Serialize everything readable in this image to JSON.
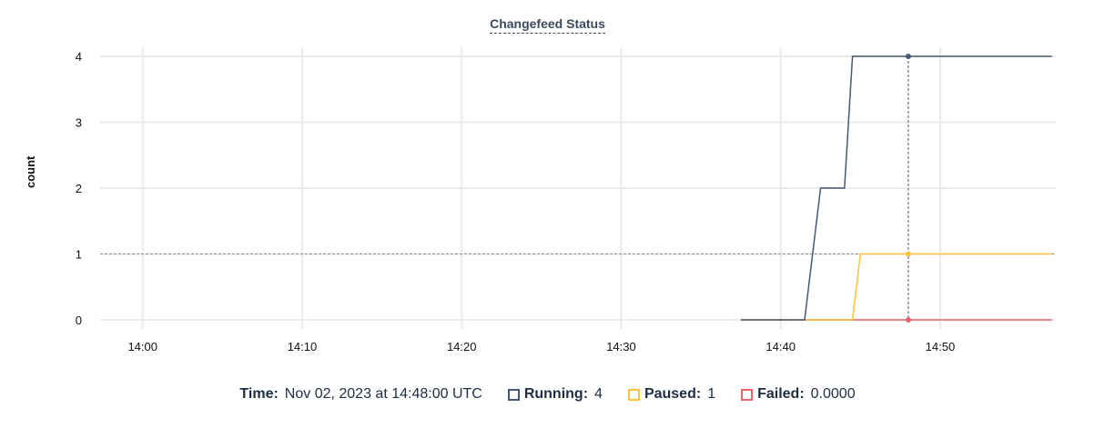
{
  "chart_data": {
    "type": "line",
    "title": "Changefeed Status",
    "xlabel": "",
    "ylabel": "count",
    "x_ticks": [
      "14:00",
      "14:10",
      "14:20",
      "14:30",
      "14:40",
      "14:50"
    ],
    "y_ticks": [
      0,
      1,
      2,
      3,
      4
    ],
    "xlim": [
      "13:57:20",
      "14:57:15"
    ],
    "ylim": [
      0,
      4
    ],
    "grid": true,
    "hover_time": "14:48:00",
    "series": [
      {
        "name": "Running",
        "color": "#475872",
        "points": [
          [
            "14:37:30",
            0
          ],
          [
            "14:41:30",
            0
          ],
          [
            "14:42:30",
            2
          ],
          [
            "14:44:00",
            2
          ],
          [
            "14:44:30",
            4
          ],
          [
            "14:57:00",
            4
          ]
        ]
      },
      {
        "name": "Paused",
        "color": "#ffc23a",
        "points": [
          [
            "14:37:30",
            0
          ],
          [
            "14:44:30",
            0
          ],
          [
            "14:45:00",
            1
          ],
          [
            "14:57:00",
            1
          ]
        ]
      },
      {
        "name": "Failed",
        "color": "#f2606a",
        "points": [
          [
            "14:37:30",
            0
          ],
          [
            "14:57:00",
            0
          ]
        ]
      }
    ]
  },
  "legend": {
    "time_label": "Time:",
    "time_value": "Nov 02, 2023 at 14:48:00 UTC",
    "items": [
      {
        "label": "Running:",
        "value": "4",
        "color": "#475872"
      },
      {
        "label": "Paused:",
        "value": "1",
        "color": "#ffc23a"
      },
      {
        "label": "Failed:",
        "value": "0.0000",
        "color": "#f2606a"
      }
    ]
  }
}
